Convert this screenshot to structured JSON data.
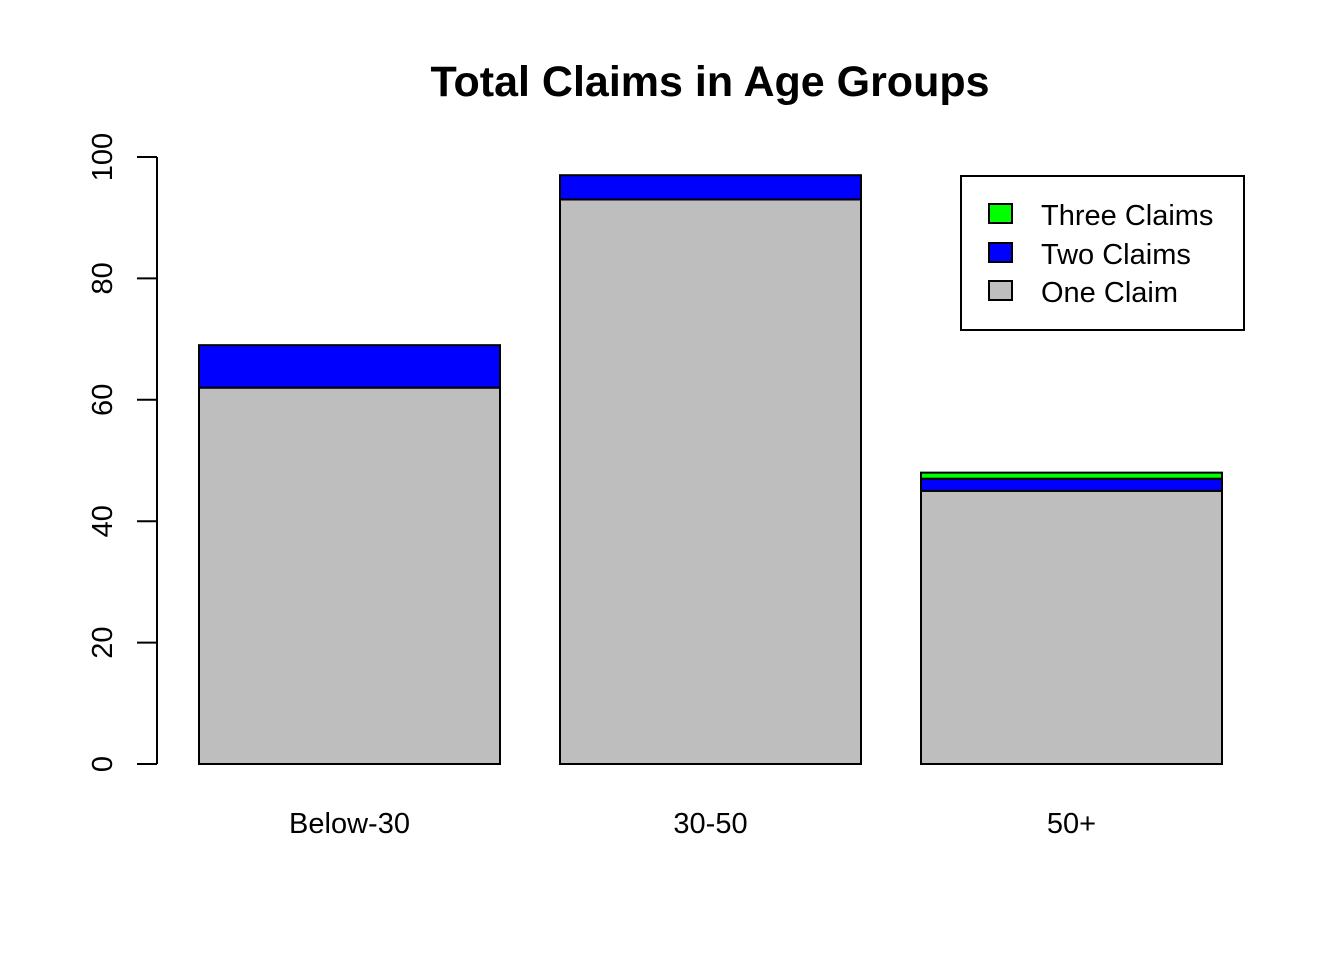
{
  "chart_data": {
    "type": "bar",
    "stacked": true,
    "title": "Total Claims in Age Groups",
    "xlabel": "",
    "ylabel": "",
    "categories": [
      "Below-30",
      "30-50",
      "50+"
    ],
    "series": [
      {
        "name": "One Claim",
        "values": [
          62,
          93,
          45
        ],
        "color": "#bebebe"
      },
      {
        "name": "Two Claims",
        "values": [
          7,
          4,
          2
        ],
        "color": "#0000ff"
      },
      {
        "name": "Three Claims",
        "values": [
          0,
          0,
          1
        ],
        "color": "#00ff00"
      }
    ],
    "ylim": [
      0,
      100
    ],
    "yticks": [
      "0",
      "20",
      "40",
      "60",
      "80",
      "100"
    ],
    "legend": {
      "position": "top-right",
      "items": [
        "Three Claims",
        "Two Claims",
        "One Claim"
      ]
    },
    "grid": false
  }
}
